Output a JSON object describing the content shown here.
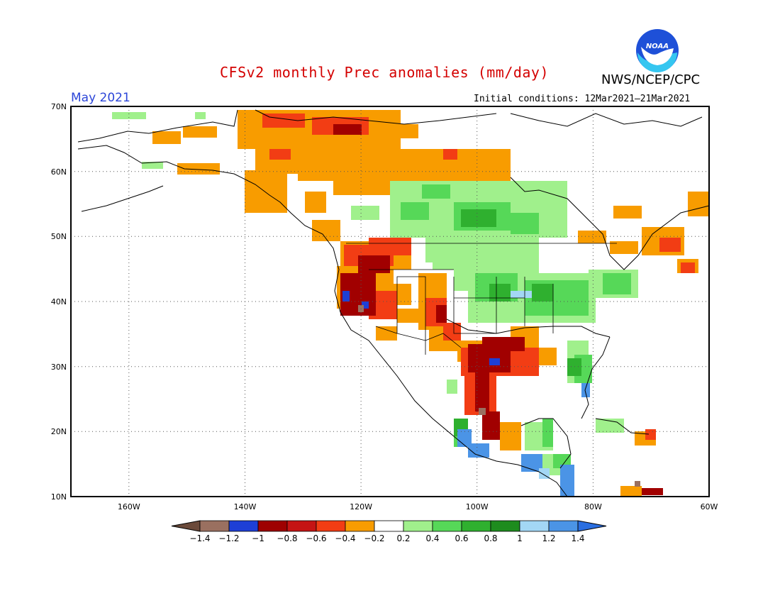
{
  "header": {
    "title": "CFSv2 monthly Prec anomalies (mm/day)",
    "agency": "NWS/NCEP/CPC",
    "month": "May 2021",
    "initial_conditions": "Initial conditions: 12Mar2021–21Mar2021",
    "logo_text": "NOAA"
  },
  "map": {
    "lat_labels": [
      "70N",
      "60N",
      "50N",
      "40N",
      "30N",
      "20N",
      "10N"
    ],
    "lon_labels": [
      "160W",
      "140W",
      "120W",
      "100W",
      "80W",
      "60W"
    ],
    "lat_range": [
      10,
      70
    ],
    "lon_range": [
      -170,
      -60
    ]
  },
  "colorbar": {
    "labels": [
      "-1.4",
      "-1.2",
      "-1",
      "-0.8",
      "-0.6",
      "-0.4",
      "-0.2",
      "0.2",
      "0.4",
      "0.6",
      "0.8",
      "1",
      "1.2",
      "1.4"
    ],
    "colors": [
      "#8b5a4a",
      "#a07060",
      "#1c35d0",
      "#a10000",
      "#c81010",
      "#f03c14",
      "#f79a00",
      "#ffffff",
      "#9ef08a",
      "#55d95a",
      "#2eb02e",
      "#1f8c1f",
      "#a0d6f5",
      "#4a95e8",
      "#2a6ee0"
    ]
  },
  "legend_colors": {
    "brown": "#9a7060",
    "blue_dark": "#1e3fd6",
    "red_dark": "#9e0000",
    "red": "#c51414",
    "red_orange": "#f23d14",
    "orange": "#f89c00",
    "white": "#ffffff",
    "green_light": "#a0f08c",
    "green": "#56d858",
    "green_mid": "#2fb02f",
    "green_dark": "#1e8c1e",
    "blue_light": "#a3d7f5",
    "blue": "#4b94e6"
  }
}
